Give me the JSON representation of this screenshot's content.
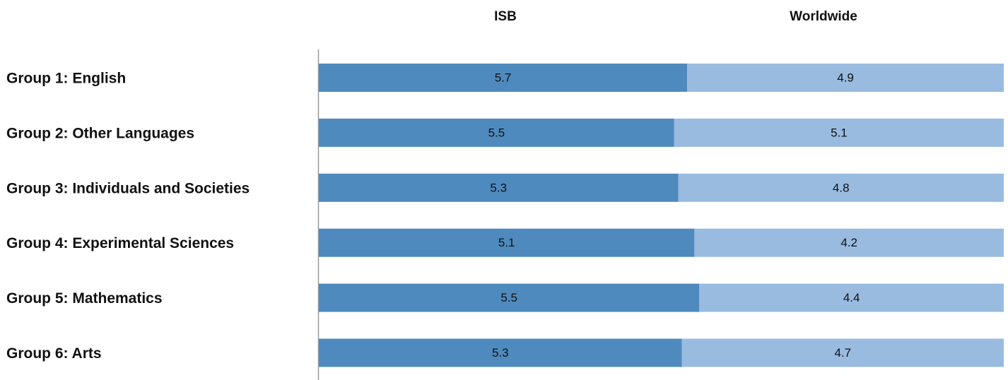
{
  "chart_data": {
    "type": "bar",
    "orientation": "horizontal",
    "stacking": "percent",
    "categories": [
      "Group 1: English",
      "Group 2: Other Languages",
      "Group 3: Individuals and Societies",
      "Group 4: Experimental Sciences",
      "Group 5: Mathematics",
      "Group 6: Arts"
    ],
    "series": [
      {
        "name": "ISB",
        "color": "#4e8abe",
        "values": [
          5.7,
          5.5,
          5.3,
          5.1,
          5.5,
          5.3
        ]
      },
      {
        "name": "Worldwide",
        "color": "#99bbe0",
        "values": [
          4.9,
          5.1,
          4.8,
          4.2,
          4.4,
          4.7
        ]
      }
    ]
  }
}
